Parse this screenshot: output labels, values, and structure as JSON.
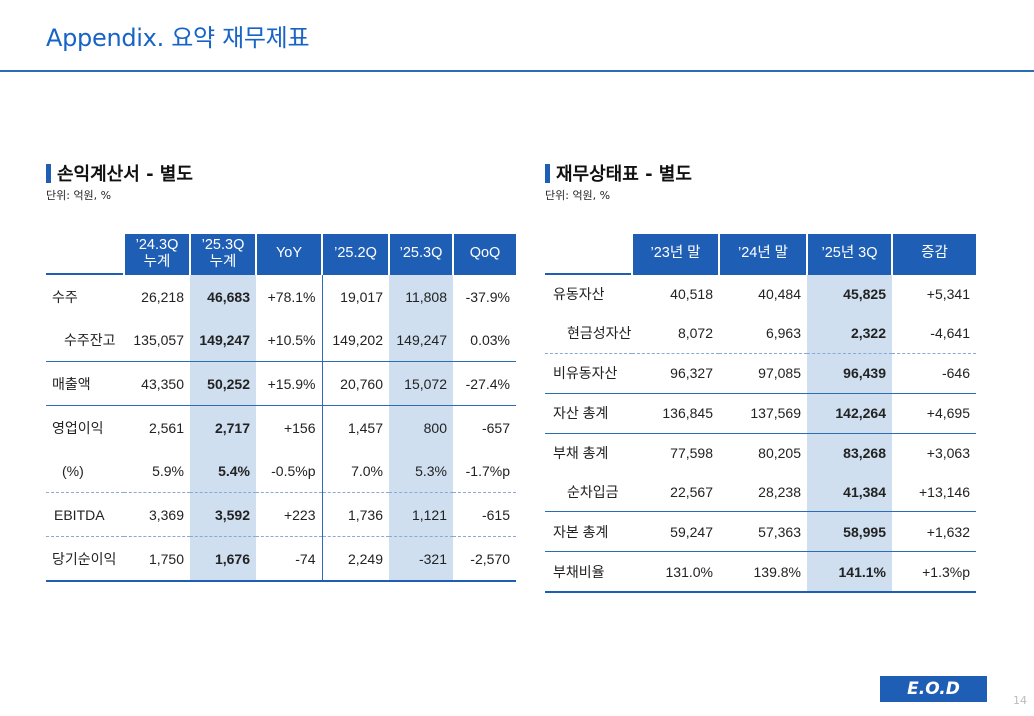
{
  "page": {
    "title": "Appendix. 요약 재무제표",
    "end_badge": "E.O.D",
    "page_number": "14"
  },
  "income": {
    "heading": "손익계산서 - 별도",
    "unit": "단위: 억원, %",
    "headers": [
      "’24.3Q\n누계",
      "’25.3Q\n누계",
      "YoY",
      "’25.2Q",
      "’25.3Q",
      "QoQ"
    ],
    "rows": [
      {
        "label": "수주",
        "values": [
          "26,218",
          "46,683",
          "+78.1%",
          "19,017",
          "11,808",
          "-37.9%"
        ]
      },
      {
        "label": "수주잔고",
        "values": [
          "135,057",
          "149,247",
          "+10.5%",
          "149,202",
          "149,247",
          "0.03%"
        ]
      },
      {
        "label": "매출액",
        "values": [
          "43,350",
          "50,252",
          "+15.9%",
          "20,760",
          "15,072",
          "-27.4%"
        ]
      },
      {
        "label": "영업이익",
        "values": [
          "2,561",
          "2,717",
          "+156",
          "1,457",
          "800",
          "-657"
        ]
      },
      {
        "label": "(%)",
        "values": [
          "5.9%",
          "5.4%",
          "-0.5%p",
          "7.0%",
          "5.3%",
          "-1.7%p"
        ]
      },
      {
        "label": "EBITDA",
        "values": [
          "3,369",
          "3,592",
          "+223",
          "1,736",
          "1,121",
          "-615"
        ]
      },
      {
        "label": "당기순이익",
        "values": [
          "1,750",
          "1,676",
          "-74",
          "2,249",
          "-321",
          "-2,570"
        ]
      }
    ]
  },
  "balance": {
    "heading": "재무상태표 - 별도",
    "unit": "단위: 억원, %",
    "headers": [
      "’23년 말",
      "’24년 말",
      "’25년 3Q",
      "증감"
    ],
    "rows": [
      {
        "label": "유동자산",
        "values": [
          "40,518",
          "40,484",
          "45,825",
          "+5,341"
        ]
      },
      {
        "label": "현금성자산",
        "values": [
          "8,072",
          "6,963",
          "2,322",
          "-4,641"
        ]
      },
      {
        "label": "비유동자산",
        "values": [
          "96,327",
          "97,085",
          "96,439",
          "-646"
        ]
      },
      {
        "label": "자산 총계",
        "values": [
          "136,845",
          "137,569",
          "142,264",
          "+4,695"
        ]
      },
      {
        "label": "부채 총계",
        "values": [
          "77,598",
          "80,205",
          "83,268",
          "+3,063"
        ]
      },
      {
        "label": "순차입금",
        "values": [
          "22,567",
          "28,238",
          "41,384",
          "+13,146"
        ]
      },
      {
        "label": "자본 총계",
        "values": [
          "59,247",
          "57,363",
          "58,995",
          "+1,632"
        ]
      },
      {
        "label": "부채비율",
        "values": [
          "131.0%",
          "139.8%",
          "141.1%",
          "+1.3%p"
        ]
      }
    ]
  }
}
